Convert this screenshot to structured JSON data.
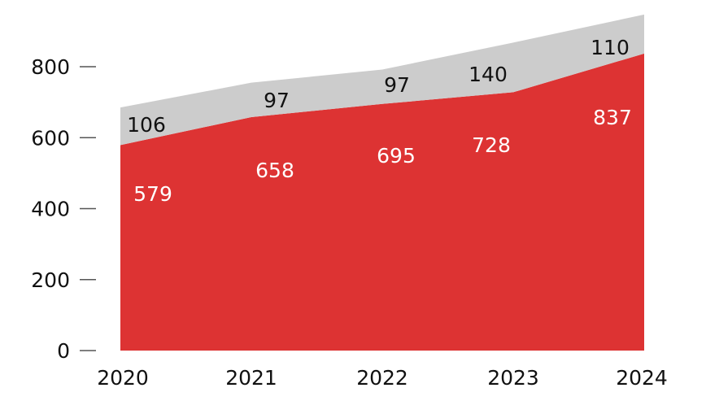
{
  "chart_data": {
    "type": "area",
    "stacked": true,
    "categories": [
      "2020",
      "2021",
      "2022",
      "2023",
      "2024"
    ],
    "series": [
      {
        "values": [
          579,
          658,
          695,
          728,
          837
        ],
        "color": "#dd3333",
        "label_color": "#ffffff"
      },
      {
        "values": [
          106,
          97,
          97,
          140,
          110
        ],
        "color": "#cccccc",
        "label_color": "#111111"
      }
    ],
    "yticks": [
      "0",
      "200",
      "400",
      "600",
      "800"
    ],
    "ylim": [
      0,
      950
    ],
    "grid": false,
    "legend": "none",
    "title": "",
    "xlabel": "",
    "ylabel": ""
  }
}
